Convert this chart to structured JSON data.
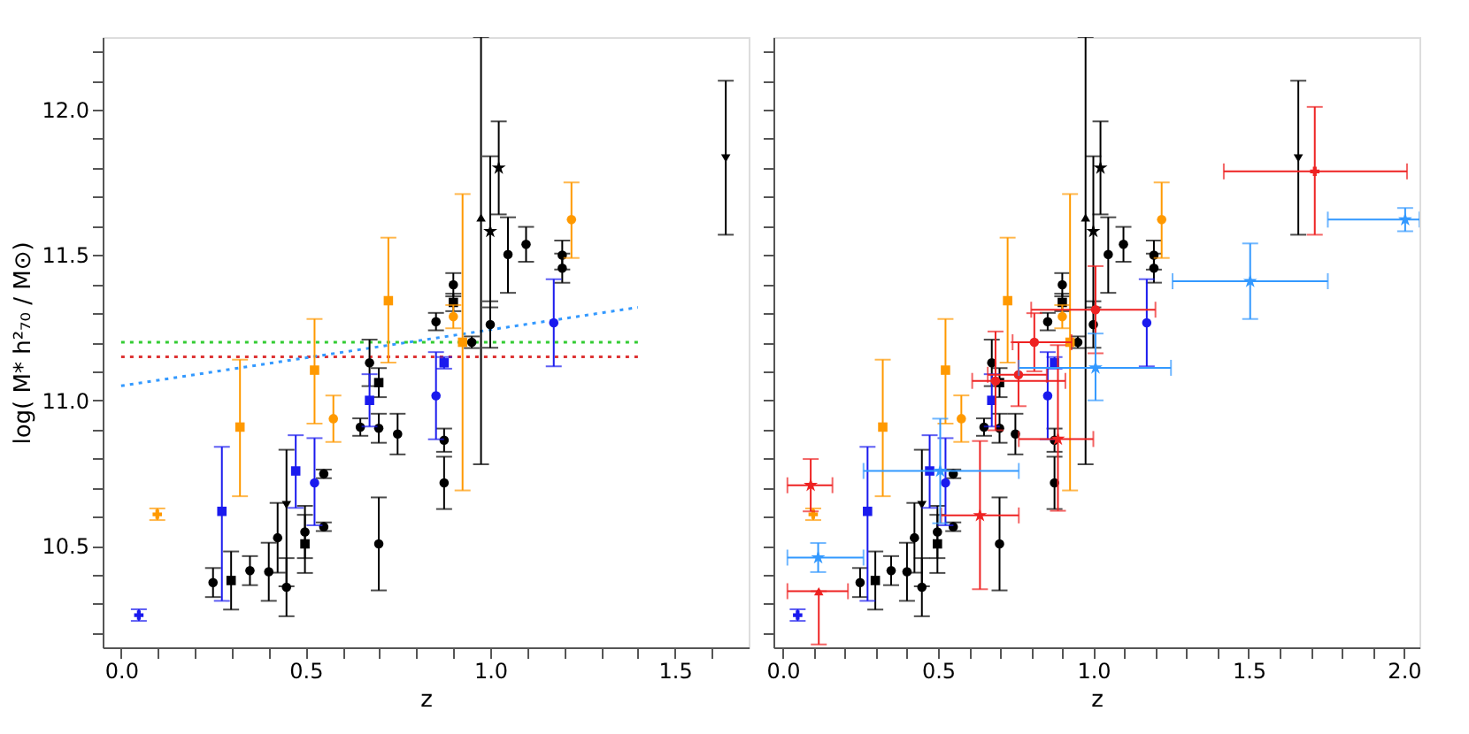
{
  "chart_data": [
    {
      "type": "scatter",
      "xlabel": "z",
      "ylabel": "log( M* h²₇₀ / M⊙)",
      "xlim": [
        -0.05,
        1.7
      ],
      "ylim": [
        10.15,
        12.25
      ],
      "grid": false,
      "xticks": [
        {
          "value": 0,
          "label": "0.0"
        },
        {
          "value": 0.1,
          "label": null
        },
        {
          "value": 0.2,
          "label": null
        },
        {
          "value": 0.3,
          "label": null
        },
        {
          "value": 0.4,
          "label": null
        },
        {
          "value": 0.5,
          "label": "0.5"
        },
        {
          "value": 0.6,
          "label": null
        },
        {
          "value": 0.7,
          "label": null
        },
        {
          "value": 0.8,
          "label": null
        },
        {
          "value": 0.9,
          "label": null
        },
        {
          "value": 1,
          "label": "1.0"
        },
        {
          "value": 1.1,
          "label": null
        },
        {
          "value": 1.2,
          "label": null
        },
        {
          "value": 1.3,
          "label": null
        },
        {
          "value": 1.4,
          "label": null
        },
        {
          "value": 1.5,
          "label": "1.5"
        },
        {
          "value": 1.6,
          "label": null
        }
      ],
      "yticks": [
        {
          "value": 10.2,
          "label": null
        },
        {
          "value": 10.3,
          "label": null
        },
        {
          "value": 10.4,
          "label": null
        },
        {
          "value": 10.5,
          "label": "10.5"
        },
        {
          "value": 10.6,
          "label": null
        },
        {
          "value": 10.7,
          "label": null
        },
        {
          "value": 10.8,
          "label": null
        },
        {
          "value": 10.9,
          "label": null
        },
        {
          "value": 11,
          "label": "11.0"
        },
        {
          "value": 11.1,
          "label": null
        },
        {
          "value": 11.2,
          "label": null
        },
        {
          "value": 11.3,
          "label": null
        },
        {
          "value": 11.4,
          "label": null
        },
        {
          "value": 11.5,
          "label": "11.5"
        },
        {
          "value": 11.6,
          "label": null
        },
        {
          "value": 11.7,
          "label": null
        },
        {
          "value": 11.8,
          "label": null
        },
        {
          "value": 11.9,
          "label": null
        },
        {
          "value": 12,
          "label": "12.0"
        },
        {
          "value": 12.1,
          "label": null
        },
        {
          "value": 12.2,
          "label": null
        }
      ],
      "series": [
        {
          "type": "line",
          "color": "#33cc33",
          "line_style": "dotted",
          "x": [
            0,
            1.4
          ],
          "values": [
            11.2,
            11.2
          ]
        },
        {
          "type": "line",
          "color": "#dd3333",
          "line_style": "dotted",
          "x": [
            0,
            1.4
          ],
          "values": [
            11.15,
            11.15
          ]
        },
        {
          "type": "line",
          "color": "#3399ff",
          "line_style": "dotted",
          "x": [
            0,
            1.4
          ],
          "values": [
            11.05,
            11.32
          ]
        },
        {
          "type": "scatter",
          "color": "#000000",
          "marker": "circle",
          "x": [
            0.249,
            0.349,
            0.4,
            0.424,
            0.448,
            0.498,
            0.549,
            0.549,
            0.648,
            0.673,
            0.698,
            0.698,
            0.749,
            0.853,
            0.875,
            0.875,
            0.9,
            0.95,
            1.0,
            1.048,
            1.097,
            1.195,
            1.195
          ],
          "values": [
            10.373,
            10.414,
            10.41,
            10.527,
            10.357,
            10.547,
            10.747,
            10.565,
            10.908,
            11.129,
            10.904,
            10.506,
            10.884,
            11.271,
            10.863,
            10.716,
            11.398,
            11.2,
            11.261,
            11.502,
            11.537,
            11.5,
            11.455
          ],
          "errors": [
            0.05,
            0.05,
            0.1,
            0.12,
            0.1,
            0.09,
            0.015,
            0.015,
            0.03,
            0.08,
            0.05,
            0.16,
            0.07,
            0.03,
            0.04,
            0.09,
            0.04,
            0.02,
            0.08,
            [
              11.37,
              11.63
            ],
            0.06,
            0.05,
            0.05
          ]
        },
        {
          "type": "scatter",
          "color": "#000000",
          "marker": "square",
          "x": [
            0.298,
            0.498,
            0.698,
            0.9
          ],
          "values": [
            10.38,
            10.506,
            11.061,
            11.337
          ],
          "errors": [
            0.1,
            0.1,
            0.05,
            0.03
          ]
        },
        {
          "type": "scatter",
          "color": "#000000",
          "marker": "star",
          "x": [
            1.0,
            1.023
          ],
          "values": [
            11.582,
            11.8
          ],
          "errors": [
            [
              11.32,
              11.84
            ],
            [
              11.64,
              11.96
            ]
          ]
        },
        {
          "type": "scatter",
          "color": "#000000",
          "marker": "triangle",
          "x": [
            0.975
          ],
          "values": [
            11.629
          ],
          "errors": [
            [
              10.78,
              12.25
            ]
          ]
        },
        {
          "type": "scatter",
          "color": "#000000",
          "marker": "triangle-down",
          "x": [
            0.448,
            1.638
          ],
          "values": [
            10.64,
            11.833
          ],
          "errors": [
            [
              10.36,
              10.83
            ],
            [
              11.57,
              12.1
            ]
          ]
        },
        {
          "type": "scatter",
          "color": "#1a1aee",
          "marker": "square",
          "x": [
            0.273,
            0.473,
            0.673,
            0.875
          ],
          "values": [
            10.618,
            10.757,
            11.0,
            11.129
          ],
          "errors": [
            [
              10.31,
              10.84
            ],
            [
              10.63,
              10.88
            ],
            0.09,
            0.02
          ]
        },
        {
          "type": "scatter",
          "color": "#1a1aee",
          "marker": "circle",
          "x": [
            0.524,
            0.853,
            1.172
          ],
          "values": [
            10.716,
            11.016,
            11.267
          ],
          "errors": [
            [
              10.57,
              10.87
            ],
            0.15,
            0.15
          ]
        },
        {
          "type": "scatter",
          "color": "#1a1aee",
          "marker": "cross",
          "x": [
            0.048
          ],
          "values": [
            10.261
          ],
          "errors": [
            0.02
          ]
        },
        {
          "type": "scatter",
          "color": "#ff9900",
          "marker": "square",
          "x": [
            0.322,
            0.524,
            0.724,
            0.925
          ],
          "values": [
            10.908,
            11.104,
            11.343,
            11.2
          ],
          "errors": [
            [
              10.67,
              11.14
            ],
            [
              10.92,
              11.28
            ],
            [
              11.13,
              11.56
            ],
            [
              10.69,
              11.71
            ]
          ]
        },
        {
          "type": "scatter",
          "color": "#ff9900",
          "marker": "circle",
          "x": [
            0.575,
            0.9,
            1.22
          ],
          "values": [
            10.937,
            11.288,
            11.622
          ],
          "errors": [
            0.08,
            0.04,
            [
              11.49,
              11.75
            ]
          ]
        },
        {
          "type": "scatter",
          "color": "#ff9900",
          "marker": "cross",
          "x": [
            0.098
          ],
          "values": [
            10.608
          ],
          "errors": [
            0.02
          ]
        }
      ]
    },
    {
      "type": "scatter",
      "xlabel": "z",
      "xlim": [
        -0.03,
        2.05
      ],
      "ylim": [
        10.15,
        12.25
      ],
      "grid": false,
      "tick_labels": "x",
      "xticks": [
        {
          "value": 0,
          "label": "0.0"
        },
        {
          "value": 0.1,
          "label": null
        },
        {
          "value": 0.2,
          "label": null
        },
        {
          "value": 0.3,
          "label": null
        },
        {
          "value": 0.4,
          "label": null
        },
        {
          "value": 0.5,
          "label": "0.5"
        },
        {
          "value": 0.6,
          "label": null
        },
        {
          "value": 0.7,
          "label": null
        },
        {
          "value": 0.8,
          "label": null
        },
        {
          "value": 0.9,
          "label": null
        },
        {
          "value": 1,
          "label": "1.0"
        },
        {
          "value": 1.1,
          "label": null
        },
        {
          "value": 1.2,
          "label": null
        },
        {
          "value": 1.3,
          "label": null
        },
        {
          "value": 1.4,
          "label": null
        },
        {
          "value": 1.5,
          "label": "1.5"
        },
        {
          "value": 1.6,
          "label": null
        },
        {
          "value": 1.7,
          "label": null
        },
        {
          "value": 1.8,
          "label": null
        },
        {
          "value": 1.9,
          "label": null
        },
        {
          "value": 2,
          "label": "2.0"
        }
      ],
      "yticks": [
        {
          "value": 10.2,
          "label": null
        },
        {
          "value": 10.3,
          "label": null
        },
        {
          "value": 10.4,
          "label": null
        },
        {
          "value": 10.5,
          "label": null
        },
        {
          "value": 10.6,
          "label": null
        },
        {
          "value": 10.7,
          "label": null
        },
        {
          "value": 10.8,
          "label": null
        },
        {
          "value": 10.9,
          "label": null
        },
        {
          "value": 11,
          "label": null
        },
        {
          "value": 11.1,
          "label": null
        },
        {
          "value": 11.2,
          "label": null
        },
        {
          "value": 11.3,
          "label": null
        },
        {
          "value": 11.4,
          "label": null
        },
        {
          "value": 11.5,
          "label": null
        },
        {
          "value": 11.6,
          "label": null
        },
        {
          "value": 11.7,
          "label": null
        },
        {
          "value": 11.8,
          "label": null
        },
        {
          "value": 11.9,
          "label": null
        },
        {
          "value": 12,
          "label": null
        },
        {
          "value": 12.1,
          "label": null
        },
        {
          "value": 12.2,
          "label": null
        }
      ],
      "series": [
        {
          "type": "scatter",
          "color": "#000000",
          "marker": "circle",
          "x": [
            0.249,
            0.349,
            0.4,
            0.424,
            0.448,
            0.498,
            0.549,
            0.549,
            0.648,
            0.673,
            0.698,
            0.698,
            0.749,
            0.853,
            0.875,
            0.875,
            0.9,
            0.95,
            1.0,
            1.048,
            1.097,
            1.195,
            1.195
          ],
          "values": [
            10.373,
            10.414,
            10.41,
            10.527,
            10.357,
            10.547,
            10.747,
            10.565,
            10.908,
            11.129,
            10.904,
            10.506,
            10.884,
            11.271,
            10.863,
            10.716,
            11.398,
            11.2,
            11.261,
            11.502,
            11.537,
            11.5,
            11.455
          ],
          "errors": [
            0.05,
            0.05,
            0.1,
            0.12,
            0.1,
            0.09,
            0.015,
            0.015,
            0.03,
            0.08,
            0.05,
            0.16,
            0.07,
            0.03,
            0.04,
            0.09,
            0.04,
            0.02,
            0.08,
            [
              11.37,
              11.63
            ],
            0.06,
            0.05,
            0.05
          ]
        },
        {
          "type": "scatter",
          "color": "#000000",
          "marker": "square",
          "x": [
            0.298,
            0.498,
            0.698,
            0.9
          ],
          "values": [
            10.38,
            10.506,
            11.061,
            11.337
          ],
          "errors": [
            0.1,
            0.1,
            0.05,
            0.03
          ]
        },
        {
          "type": "scatter",
          "color": "#000000",
          "marker": "star",
          "x": [
            1.0,
            1.023
          ],
          "values": [
            11.582,
            11.8
          ],
          "errors": [
            [
              11.32,
              11.84
            ],
            [
              11.64,
              11.96
            ]
          ]
        },
        {
          "type": "scatter",
          "color": "#000000",
          "marker": "triangle",
          "x": [
            0.975
          ],
          "values": [
            11.629
          ],
          "errors": [
            [
              10.78,
              12.25
            ]
          ]
        },
        {
          "type": "scatter",
          "color": "#000000",
          "marker": "triangle-down",
          "x": [
            0.448,
            1.66
          ],
          "values": [
            10.64,
            11.833
          ],
          "errors": [
            [
              10.36,
              10.83
            ],
            [
              11.57,
              12.1
            ]
          ]
        },
        {
          "type": "scatter",
          "color": "#1a1aee",
          "marker": "square",
          "x": [
            0.273,
            0.473,
            0.673,
            0.875
          ],
          "values": [
            10.618,
            10.757,
            11.0,
            11.129
          ],
          "errors": [
            [
              10.31,
              10.84
            ],
            [
              10.63,
              10.88
            ],
            0.09,
            0.02
          ]
        },
        {
          "type": "scatter",
          "color": "#1a1aee",
          "marker": "circle",
          "x": [
            0.524,
            0.853,
            1.172
          ],
          "values": [
            10.716,
            11.016,
            11.267
          ],
          "errors": [
            [
              10.57,
              10.87
            ],
            0.15,
            0.15
          ]
        },
        {
          "type": "scatter",
          "color": "#1a1aee",
          "marker": "cross",
          "x": [
            0.048
          ],
          "values": [
            10.261
          ],
          "errors": [
            0.02
          ]
        },
        {
          "type": "scatter",
          "color": "#ff9900",
          "marker": "square",
          "x": [
            0.322,
            0.524,
            0.724,
            0.925
          ],
          "values": [
            10.908,
            11.104,
            11.343,
            11.2
          ],
          "errors": [
            [
              10.67,
              11.14
            ],
            [
              10.92,
              11.28
            ],
            [
              11.13,
              11.56
            ],
            [
              10.69,
              11.71
            ]
          ]
        },
        {
          "type": "scatter",
          "color": "#ff9900",
          "marker": "circle",
          "x": [
            0.575,
            0.9,
            1.22
          ],
          "values": [
            10.937,
            11.288,
            11.622
          ],
          "errors": [
            0.08,
            0.04,
            [
              11.49,
              11.75
            ]
          ]
        },
        {
          "type": "scatter",
          "color": "#ff9900",
          "marker": "cross",
          "x": [
            0.098
          ],
          "values": [
            10.608
          ],
          "errors": [
            0.02
          ]
        },
        {
          "type": "scatter",
          "color": "#ee2222",
          "marker": "circle",
          "x": [
            0.685,
            0.759,
            0.81,
            1.007
          ],
          "values": [
            11.067,
            11.088,
            11.2,
            11.312
          ],
          "errors": [
            0.17,
            [
              10.98,
              11.2
            ],
            0.1,
            0.15
          ],
          "xerrors": [
            [
              0.61,
              0.91
            ],
            [
              0.66,
              0.85
            ],
            [
              0.74,
              0.93
            ],
            [
              0.8,
              1.2
            ]
          ]
        },
        {
          "type": "scatter",
          "color": "#ee2222",
          "marker": "star",
          "x": [
            0.09,
            0.635,
            0.886
          ],
          "values": [
            10.708,
            10.604,
            10.867
          ],
          "errors": [
            0.09,
            [
              10.35,
              10.86
            ],
            [
              10.62,
              11.19
            ]
          ],
          "xerrors": [
            [
              0.015,
              0.16
            ],
            [
              0.51,
              0.76
            ],
            [
              0.76,
              1.0
            ]
          ]
        },
        {
          "type": "scatter",
          "color": "#ee2222",
          "marker": "triangle",
          "x": [
            0.116
          ],
          "values": [
            10.343
          ],
          "errors": [
            [
              10.16,
              10.343
            ]
          ],
          "xerrors": [
            [
              0.015,
              0.21
            ]
          ]
        },
        {
          "type": "scatter",
          "color": "#ee2222",
          "marker": "cross",
          "x": [
            1.713
          ],
          "values": [
            11.788
          ],
          "errors": [
            [
              11.57,
              12.01
            ]
          ],
          "xerrors": [
            [
              1.42,
              2.01
            ]
          ]
        },
        {
          "type": "scatter",
          "color": "#3399ff",
          "marker": "star",
          "x": [
            0.114,
            0.507,
            1.007,
            1.505,
            2.004
          ],
          "values": [
            10.459,
            10.757,
            11.112,
            11.41,
            11.622
          ],
          "errors": [
            0.05,
            0.18,
            [
              11.0,
              11.23
            ],
            [
              11.28,
              11.54
            ],
            0.04
          ],
          "xerrors": [
            [
              0.015,
              0.26
            ],
            [
              0.26,
              0.76
            ],
            [
              0.76,
              1.25
            ],
            [
              1.255,
              1.755
            ],
            [
              1.755,
              2.05
            ]
          ]
        }
      ]
    }
  ]
}
